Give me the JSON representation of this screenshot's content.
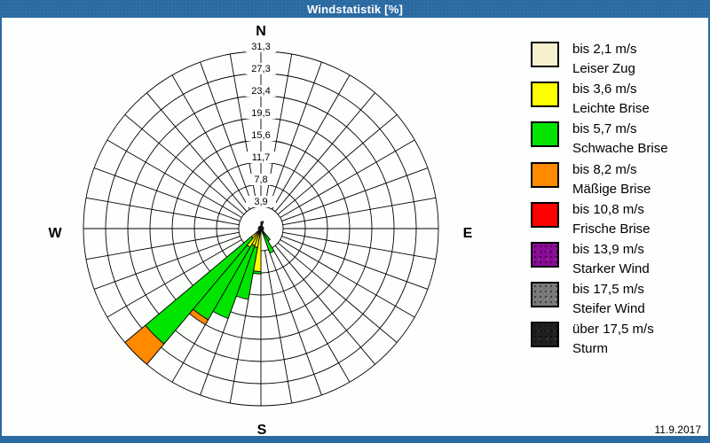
{
  "window": {
    "title": "Windstatistik [%]",
    "date": "11.9.2017",
    "chrome_color": "#2A6AA2",
    "background": "#FCFFFC"
  },
  "compass": {
    "north": "N",
    "east": "E",
    "south": "S",
    "west": "W"
  },
  "chart_data": {
    "type": "wind-rose",
    "unit": "%",
    "axis_max": 31.3,
    "ring_values": [
      3.9,
      7.8,
      11.7,
      15.6,
      19.5,
      23.4,
      27.3,
      31.3
    ],
    "ring_labels": [
      "3,9",
      "7,8",
      "11,7",
      "15,6",
      "19,5",
      "23,4",
      "27,3",
      "31,3"
    ],
    "sector_width_deg": 10,
    "spoke_step_deg": 10,
    "grid_color": "#000000",
    "classes": [
      {
        "id": "leiser-zug",
        "color": "#F6F0CE",
        "speed": "bis 2,1 m/s",
        "name": "Leiser Zug",
        "textured": false
      },
      {
        "id": "leichte-brise",
        "color": "#FFFF00",
        "speed": "bis 3,6 m/s",
        "name": "Leichte Brise",
        "textured": false
      },
      {
        "id": "schwache-brise",
        "color": "#00E400",
        "speed": "bis 5,7 m/s",
        "name": "Schwache Brise",
        "textured": false
      },
      {
        "id": "maessige-brise",
        "color": "#FF8A00",
        "speed": "bis 8,2 m/s",
        "name": "Mäßige Brise",
        "textured": false
      },
      {
        "id": "frische-brise",
        "color": "#FF0000",
        "speed": "bis 10,8 m/s",
        "name": "Frische Brise",
        "textured": false
      },
      {
        "id": "starker-wind",
        "color": "#8A0B95",
        "speed": "bis 13,9 m/s",
        "name": "Starker Wind",
        "textured": true
      },
      {
        "id": "steifer-wind",
        "color": "#7A7A7A",
        "speed": "bis 17,5 m/s",
        "name": "Steifer Wind",
        "textured": true
      },
      {
        "id": "sturm",
        "color": "#1F1F1F",
        "speed": "über 17,5 m/s",
        "name": "Sturm",
        "textured": true
      }
    ],
    "bars": [
      {
        "direction_deg": 5,
        "cumulative": [
          1.2
        ]
      },
      {
        "direction_deg": 15,
        "cumulative": [
          1.3
        ]
      },
      {
        "direction_deg": 145,
        "cumulative": [
          0.2,
          0.6,
          2.5
        ]
      },
      {
        "direction_deg": 155,
        "cumulative": [
          0.3,
          0.9,
          4.6
        ]
      },
      {
        "direction_deg": 185,
        "cumulative": [
          0.3,
          7.6,
          8.0
        ]
      },
      {
        "direction_deg": 195,
        "cumulative": [
          0.3,
          3.4,
          12.7
        ]
      },
      {
        "direction_deg": 205,
        "cumulative": [
          0.3,
          3.2,
          16.9
        ]
      },
      {
        "direction_deg": 215,
        "cumulative": [
          0.3,
          3.8,
          18.6,
          19.6
        ]
      },
      {
        "direction_deg": 225,
        "cumulative": [
          0.3,
          2.2,
          26.6,
          31.3
        ]
      }
    ]
  }
}
